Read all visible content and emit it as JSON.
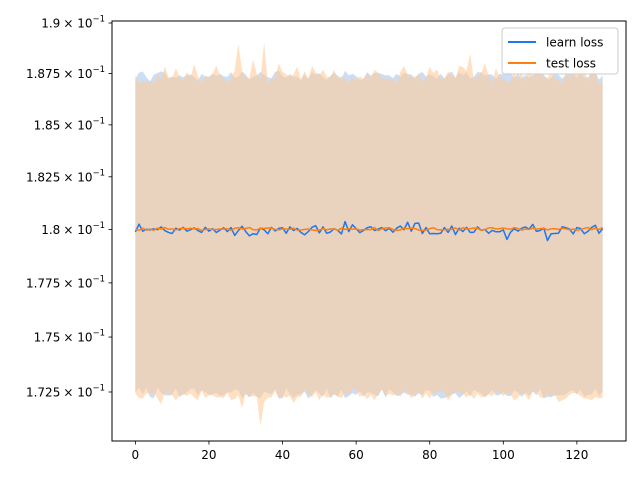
{
  "chart_data": {
    "type": "line",
    "title": "",
    "xlabel": "",
    "ylabel": "",
    "xlim": [
      -6.35,
      133.35
    ],
    "ylim": [
      0.1703,
      0.1901
    ],
    "y_scale": "log",
    "grid": false,
    "legend_position": "top-right",
    "x_ticks": [
      0,
      20,
      40,
      60,
      80,
      100,
      120
    ],
    "y_ticks": [
      {
        "value": 0.1725,
        "mantissa": "1.725"
      },
      {
        "value": 0.175,
        "mantissa": "1.75"
      },
      {
        "value": 0.1775,
        "mantissa": "1.775"
      },
      {
        "value": 0.18,
        "mantissa": "1.8"
      },
      {
        "value": 0.1825,
        "mantissa": "1.825"
      },
      {
        "value": 0.185,
        "mantissa": "1.85"
      },
      {
        "value": 0.1875,
        "mantissa": "1.875"
      },
      {
        "value": 0.19,
        "mantissa": "1.9"
      }
    ],
    "y_tick_suffix": "× 10",
    "y_tick_exponent": "−1",
    "x": [
      0,
      1,
      2,
      3,
      4,
      5,
      6,
      7,
      8,
      9,
      10,
      11,
      12,
      13,
      14,
      15,
      16,
      17,
      18,
      19,
      20,
      21,
      22,
      23,
      24,
      25,
      26,
      27,
      28,
      29,
      30,
      31,
      32,
      33,
      34,
      35,
      36,
      37,
      38,
      39,
      40,
      41,
      42,
      43,
      44,
      45,
      46,
      47,
      48,
      49,
      50,
      51,
      52,
      53,
      54,
      55,
      56,
      57,
      58,
      59,
      60,
      61,
      62,
      63,
      64,
      65,
      66,
      67,
      68,
      69,
      70,
      71,
      72,
      73,
      74,
      75,
      76,
      77,
      78,
      79,
      80,
      81,
      82,
      83,
      84,
      85,
      86,
      87,
      88,
      89,
      90,
      91,
      92,
      93,
      94,
      95,
      96,
      97,
      98,
      99,
      100,
      101,
      102,
      103,
      104,
      105,
      106,
      107,
      108,
      109,
      110,
      111,
      112,
      113,
      114,
      115,
      116,
      117,
      118,
      119,
      120,
      121,
      122,
      123,
      124,
      125,
      126,
      127
    ],
    "series": [
      {
        "name": "learn loss",
        "color": "#1f77f0",
        "band_color": "#a8c8f0",
        "values": [
          0.17988,
          0.18025,
          0.17992,
          0.18001,
          0.17998,
          0.18003,
          0.17999,
          0.18012,
          0.17995,
          0.17986,
          0.17981,
          0.18006,
          0.17997,
          0.1801,
          0.17992,
          0.17999,
          0.18007,
          0.17995,
          0.17986,
          0.1801,
          0.17992,
          0.18004,
          0.17986,
          0.17997,
          0.18008,
          0.1799,
          0.18009,
          0.17972,
          0.17995,
          0.18015,
          0.1799,
          0.1797,
          0.1798,
          0.17976,
          0.18007,
          0.17998,
          0.1798,
          0.1801,
          0.17993,
          0.18005,
          0.18008,
          0.17982,
          0.18012,
          0.17995,
          0.18005,
          0.17986,
          0.17975,
          0.1799,
          0.1801,
          0.18018,
          0.17984,
          0.18012,
          0.17982,
          0.17988,
          0.18004,
          0.17996,
          0.17979,
          0.18037,
          0.1799,
          0.18022,
          0.18004,
          0.17985,
          0.17995,
          0.18008,
          0.18013,
          0.17995,
          0.18002,
          0.18009,
          0.17994,
          0.18005,
          0.17987,
          0.18006,
          0.18016,
          0.17999,
          0.18034,
          0.17992,
          0.18029,
          0.1803,
          0.17981,
          0.18009,
          0.1798,
          0.17981,
          0.1798,
          0.17982,
          0.18009,
          0.17986,
          0.18016,
          0.17976,
          0.18006,
          0.1799,
          0.1801,
          0.17986,
          0.17987,
          0.18012,
          0.17996,
          0.18,
          0.17982,
          0.17996,
          0.17989,
          0.17989,
          0.17998,
          0.17953,
          0.17988,
          0.18003,
          0.17992,
          0.18006,
          0.18012,
          0.18001,
          0.18024,
          0.17991,
          0.17995,
          0.18007,
          0.17948,
          0.1798,
          0.17981,
          0.17982,
          0.18013,
          0.18008,
          0.18002,
          0.17979,
          0.18009,
          0.18004,
          0.1798,
          0.17991,
          0.18009,
          0.1802,
          0.17982,
          0.18004
        ],
        "upper": [
          0.18725,
          0.18755,
          0.1876,
          0.18732,
          0.18712,
          0.18745,
          0.18753,
          0.18761,
          0.18754,
          0.18724,
          0.18736,
          0.1873,
          0.18741,
          0.18732,
          0.18744,
          0.18745,
          0.18733,
          0.18715,
          0.18748,
          0.18736,
          0.18735,
          0.1875,
          0.18738,
          0.1875,
          0.18737,
          0.18734,
          0.18758,
          0.18729,
          0.18735,
          0.18761,
          0.18745,
          0.18721,
          0.18735,
          0.18741,
          0.18758,
          0.18744,
          0.18732,
          0.18728,
          0.18759,
          0.18763,
          0.18737,
          0.1873,
          0.18748,
          0.18733,
          0.18735,
          0.18718,
          0.18746,
          0.18726,
          0.18756,
          0.18745,
          0.18752,
          0.18734,
          0.18719,
          0.18738,
          0.18755,
          0.1874,
          0.18723,
          0.18764,
          0.18741,
          0.18749,
          0.18738,
          0.18718,
          0.18726,
          0.18757,
          0.1874,
          0.18754,
          0.18752,
          0.18748,
          0.18741,
          0.18742,
          0.18728,
          0.18749,
          0.18734,
          0.18754,
          0.18747,
          0.18746,
          0.18725,
          0.18749,
          0.18758,
          0.18735,
          0.18747,
          0.18737,
          0.18724,
          0.18749,
          0.18725,
          0.18747,
          0.1876,
          0.18729,
          0.18757,
          0.18743,
          0.18757,
          0.18725,
          0.18735,
          0.18757,
          0.18756,
          0.1874,
          0.18746,
          0.18745,
          0.18721,
          0.18749,
          0.18746,
          0.18761,
          0.18756,
          0.18728,
          0.18749,
          0.18725,
          0.18743,
          0.18732,
          0.18743,
          0.18745,
          0.18747,
          0.18745,
          0.18721,
          0.18729,
          0.18755,
          0.18744,
          0.18725,
          0.18742,
          0.18752,
          0.18749,
          0.18731,
          0.18751,
          0.18733,
          0.18731,
          0.18753,
          0.18758,
          0.18721,
          0.1874
        ],
        "lower": [
          0.17249,
          0.1727,
          0.1724,
          0.17268,
          0.17227,
          0.17222,
          0.17268,
          0.17247,
          0.17235,
          0.17233,
          0.17238,
          0.17265,
          0.17226,
          0.17239,
          0.17247,
          0.17265,
          0.17266,
          0.17234,
          0.17257,
          0.1725,
          0.17237,
          0.17239,
          0.17247,
          0.17232,
          0.17234,
          0.17249,
          0.17247,
          0.17261,
          0.17258,
          0.17222,
          0.17241,
          0.17225,
          0.17247,
          0.17228,
          0.17222,
          0.17251,
          0.17244,
          0.1724,
          0.17262,
          0.1722,
          0.17222,
          0.17267,
          0.1724,
          0.17221,
          0.17239,
          0.17238,
          0.17252,
          0.1722,
          0.17237,
          0.17259,
          0.17242,
          0.17228,
          0.17265,
          0.17221,
          0.17239,
          0.17229,
          0.17261,
          0.17223,
          0.17232,
          0.17245,
          0.17237,
          0.17254,
          0.17229,
          0.17249,
          0.17246,
          0.17237,
          0.17231,
          0.17262,
          0.17225,
          0.17263,
          0.17247,
          0.17232,
          0.17236,
          0.17247,
          0.17238,
          0.17238,
          0.17229,
          0.17244,
          0.17236,
          0.17258,
          0.17257,
          0.17227,
          0.17237,
          0.1722,
          0.17223,
          0.17229,
          0.1724,
          0.17243,
          0.17223,
          0.17235,
          0.17253,
          0.17229,
          0.1726,
          0.1725,
          0.17243,
          0.17225,
          0.17242,
          0.17258,
          0.17234,
          0.17237,
          0.17248,
          0.17232,
          0.17232,
          0.17257,
          0.17248,
          0.17227,
          0.17248,
          0.17233,
          0.17254,
          0.17234,
          0.17265,
          0.17221,
          0.17228,
          0.17227,
          0.17234,
          0.17235,
          0.17236,
          0.17238,
          0.17254,
          0.17257,
          0.17238,
          0.17261,
          0.17228,
          0.17237,
          0.17239,
          0.17265,
          0.17232,
          0.17254
        ]
      },
      {
        "name": "test loss",
        "color": "#ff7f0e",
        "band_color": "#ffcc99",
        "values": [
          0.18001,
          0.17996,
          0.18006,
          0.17997,
          0.18002,
          0.17996,
          0.18006,
          0.18002,
          0.18009,
          0.18001,
          0.18003,
          0.17998,
          0.18004,
          0.18006,
          0.18003,
          0.18006,
          0.18003,
          0.18004,
          0.17996,
          0.18,
          0.18002,
          0.18,
          0.18,
          0.18002,
          0.18002,
          0.18004,
          0.17995,
          0.18006,
          0.18008,
          0.18002,
          0.18005,
          0.18009,
          0.17999,
          0.17998,
          0.18006,
          0.18005,
          0.18007,
          0.18006,
          0.18,
          0.17998,
          0.18003,
          0.18002,
          0.18001,
          0.18006,
          0.17997,
          0.17998,
          0.18,
          0.18002,
          0.17998,
          0.17995,
          0.17997,
          0.18004,
          0.17998,
          0.18002,
          0.18003,
          0.17996,
          0.18006,
          0.18,
          0.18004,
          0.18001,
          0.18003,
          0.17997,
          0.17999,
          0.18,
          0.17999,
          0.18009,
          0.17995,
          0.18004,
          0.18007,
          0.18008,
          0.18,
          0.17996,
          0.17998,
          0.18006,
          0.18004,
          0.18005,
          0.18005,
          0.17997,
          0.17996,
          0.17997,
          0.18004,
          0.18008,
          0.17999,
          0.17998,
          0.17998,
          0.18001,
          0.18,
          0.18007,
          0.17997,
          0.18008,
          0.18002,
          0.18004,
          0.18007,
          0.18005,
          0.17996,
          0.17999,
          0.18007,
          0.18008,
          0.18002,
          0.18004,
          0.18007,
          0.18003,
          0.18001,
          0.18009,
          0.18004,
          0.17997,
          0.18002,
          0.18,
          0.18006,
          0.18001,
          0.18004,
          0.18006,
          0.17998,
          0.18003,
          0.18004,
          0.18,
          0.18006,
          0.18003,
          0.17998,
          0.18002,
          0.17996,
          0.17999,
          0.18005,
          0.18009,
          0.17999,
          0.18006,
          0.18,
          0.18009
        ],
        "upper": [
          0.18741,
          0.18705,
          0.18711,
          0.1871,
          0.18714,
          0.18702,
          0.18747,
          0.18723,
          0.18786,
          0.18733,
          0.18729,
          0.18775,
          0.18734,
          0.18713,
          0.18758,
          0.18732,
          0.18795,
          0.18738,
          0.18705,
          0.1874,
          0.18729,
          0.18749,
          0.1879,
          0.1874,
          0.18726,
          0.18708,
          0.18731,
          0.18766,
          0.18895,
          0.18765,
          0.18729,
          0.18727,
          0.18821,
          0.18746,
          0.18728,
          0.18903,
          0.18703,
          0.18721,
          0.18732,
          0.18799,
          0.18759,
          0.18746,
          0.18735,
          0.18746,
          0.18785,
          0.18721,
          0.18762,
          0.18724,
          0.18787,
          0.18757,
          0.18742,
          0.18769,
          0.18735,
          0.18734,
          0.18769,
          0.18724,
          0.18739,
          0.18724,
          0.18706,
          0.18731,
          0.18719,
          0.18738,
          0.18721,
          0.18751,
          0.1873,
          0.18768,
          0.18755,
          0.18727,
          0.18724,
          0.18726,
          0.18721,
          0.18704,
          0.18757,
          0.18787,
          0.18747,
          0.18731,
          0.18735,
          0.18745,
          0.18712,
          0.18732,
          0.18783,
          0.18752,
          0.1877,
          0.18724,
          0.18727,
          0.18761,
          0.18744,
          0.18727,
          0.18787,
          0.18783,
          0.18764,
          0.18848,
          0.18717,
          0.18739,
          0.18752,
          0.18799,
          0.18741,
          0.18705,
          0.18776,
          0.1873,
          0.18727,
          0.18707,
          0.18713,
          0.18757,
          0.18723,
          0.18757,
          0.18708,
          0.18813,
          0.18724,
          0.18794,
          0.18758,
          0.18729,
          0.18731,
          0.18758,
          0.18724,
          0.18717,
          0.18702,
          0.1876,
          0.18727,
          0.1876,
          0.18762,
          0.18783,
          0.18781,
          0.18704,
          0.18796,
          0.18763,
          0.187,
          0.18714
        ],
        "lower": [
          0.17242,
          0.17223,
          0.1722,
          0.17243,
          0.17242,
          0.17247,
          0.17223,
          0.17194,
          0.17249,
          0.17245,
          0.17235,
          0.17212,
          0.17235,
          0.17238,
          0.17233,
          0.17243,
          0.17225,
          0.17214,
          0.17256,
          0.17223,
          0.17235,
          0.17236,
          0.17225,
          0.17227,
          0.17223,
          0.17247,
          0.17214,
          0.17218,
          0.17236,
          0.17176,
          0.17248,
          0.17229,
          0.17231,
          0.17229,
          0.17098,
          0.17205,
          0.17223,
          0.17226,
          0.17255,
          0.17221,
          0.17231,
          0.17225,
          0.17232,
          0.172,
          0.17226,
          0.17229,
          0.17259,
          0.1724,
          0.17225,
          0.17249,
          0.17213,
          0.17241,
          0.17224,
          0.17227,
          0.17243,
          0.17229,
          0.17223,
          0.17244,
          0.17237,
          0.1726,
          0.17263,
          0.17227,
          0.1724,
          0.17217,
          0.17237,
          0.17212,
          0.17242,
          0.17261,
          0.17232,
          0.17241,
          0.17235,
          0.1724,
          0.17229,
          0.17259,
          0.17245,
          0.17223,
          0.17234,
          0.17251,
          0.1722,
          0.17244,
          0.17221,
          0.17247,
          0.17245,
          0.17257,
          0.17243,
          0.17211,
          0.17235,
          0.17252,
          0.17246,
          0.17243,
          0.17225,
          0.17239,
          0.17219,
          0.17243,
          0.17225,
          0.1723,
          0.17239,
          0.1723,
          0.17254,
          0.17246,
          0.17232,
          0.17247,
          0.17238,
          0.17212,
          0.17225,
          0.17245,
          0.17235,
          0.17214,
          0.17248,
          0.17254,
          0.17226,
          0.17223,
          0.1724,
          0.17232,
          0.1724,
          0.17205,
          0.17212,
          0.1722,
          0.17238,
          0.17245,
          0.17246,
          0.17231,
          0.1722,
          0.1722,
          0.17212,
          0.17227,
          0.17222,
          0.17224
        ]
      }
    ]
  }
}
